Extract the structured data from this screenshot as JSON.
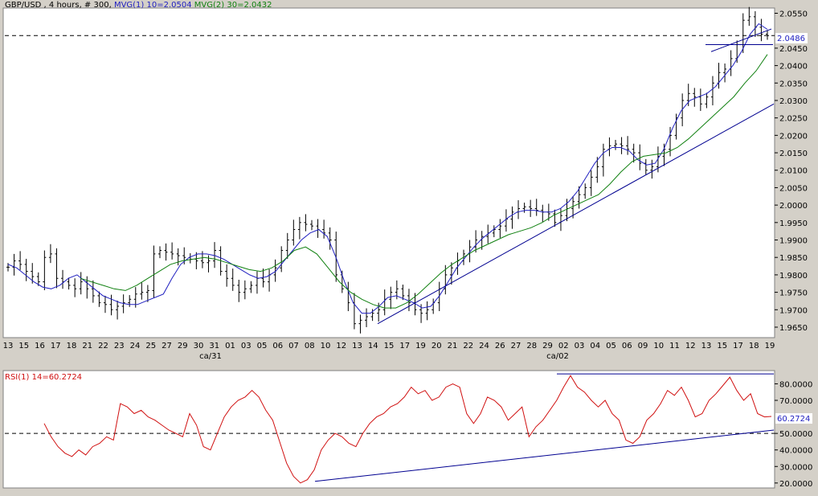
{
  "colors": {
    "background_panel": "#d4d0c8",
    "plot_bg": "#ffffff",
    "bars": "#000000",
    "mvg1": "#2020c0",
    "mvg2": "#108010",
    "trendline": "#000090",
    "rsi": "#d01010",
    "dashed": "#000000"
  },
  "price_panel": {
    "header": {
      "symbol_text": "GBP/USD , 4 hours, # 300, ",
      "mvg1_text": "MVG(1) 10=2.0504",
      "mvg2_text": "MVG(2) 30=2.0432"
    },
    "last_price_label": "2.0486",
    "y_ticks": [
      "2.0550",
      "2.0450",
      "2.0400",
      "2.0350",
      "2.0300",
      "2.0250",
      "2.0200",
      "2.0150",
      "2.0100",
      "2.0050",
      "2.0000",
      "1.9950",
      "1.9900",
      "1.9850",
      "1.9800",
      "1.9750",
      "1.9700",
      "1.9650"
    ],
    "x_ticks": [
      "13",
      "15",
      "16",
      "17",
      "18",
      "21",
      "22",
      "23",
      "24",
      "25",
      "27",
      "29",
      "30",
      "31",
      "01",
      "03",
      "05",
      "06",
      "07",
      "08",
      "10",
      "12",
      "13",
      "14",
      "15",
      "17",
      "19",
      "20",
      "21",
      "22",
      "24",
      "26",
      "27",
      "28",
      "29",
      "02",
      "03",
      "04",
      "05",
      "06",
      "09",
      "10",
      "11",
      "12",
      "13",
      "15",
      "17",
      "18",
      "19"
    ],
    "month_labels": [
      "са/31",
      "са/02"
    ]
  },
  "rsi_panel": {
    "header": "RSI(1) 14=60.2724",
    "last_label": "60.2724",
    "y_ticks": [
      "80.0000",
      "70.0000",
      "50.0000",
      "40.0000",
      "30.0000",
      "20.0000"
    ]
  },
  "chart_data": [
    {
      "type": "line",
      "title": "GBP/USD , 4 hours, # 300",
      "ylim": [
        1.962,
        2.0565
      ],
      "series": [
        {
          "name": "GBP/USD",
          "values": [
            1.9822,
            1.984,
            1.983,
            1.981,
            1.9795,
            1.978,
            1.985,
            1.986,
            1.979,
            1.978,
            1.977,
            1.976,
            1.978,
            1.976,
            1.974,
            1.972,
            1.9715,
            1.97,
            1.971,
            1.972,
            1.973,
            1.9745,
            1.975,
            1.9755,
            1.986,
            1.987,
            1.9865,
            1.986,
            1.9855,
            1.985,
            1.9845,
            1.984,
            1.9835,
            1.984,
            1.987,
            1.981,
            1.979,
            1.977,
            1.975,
            1.976,
            1.977,
            1.979,
            1.978,
            1.98,
            1.982,
            1.987,
            1.99,
            1.993,
            1.995,
            1.9945,
            1.994,
            1.993,
            1.992,
            1.99,
            1.98,
            1.976,
            1.972,
            1.966,
            1.967,
            1.968,
            1.969,
            1.97,
            1.973,
            1.975,
            1.976,
            1.974,
            1.972,
            1.97,
            1.969,
            1.97,
            1.972,
            1.976,
            1.98,
            1.982,
            1.984,
            1.986,
            1.988,
            1.99,
            1.991,
            1.992,
            1.993,
            1.994,
            1.996,
            1.998,
            1.999,
            1.9995,
            1.999,
            1.9985,
            1.998,
            1.9975,
            1.995,
            1.997,
            1.999,
            2.001,
            2.003,
            2.005,
            2.008,
            2.011,
            2.016,
            2.017,
            2.0175,
            2.017,
            2.016,
            2.015,
            2.012,
            2.01,
            2.011,
            2.014,
            2.016,
            2.02,
            2.025,
            2.03,
            2.032,
            2.031,
            2.029,
            2.031,
            2.035,
            2.038,
            2.039,
            2.042,
            2.046,
            2.053,
            2.054,
            2.051,
            2.049,
            2.0486
          ]
        },
        {
          "name": "MVG(1) 10",
          "values": [
            1.983,
            1.982,
            1.98,
            1.978,
            1.9765,
            1.976,
            1.977,
            1.979,
            1.98,
            1.978,
            1.976,
            1.974,
            1.973,
            1.972,
            1.9715,
            1.9715,
            1.9725,
            1.9735,
            1.9745,
            1.979,
            1.983,
            1.985,
            1.986,
            1.986,
            1.9855,
            1.9845,
            1.983,
            1.9815,
            1.98,
            1.979,
            1.9795,
            1.981,
            1.984,
            1.987,
            1.99,
            1.992,
            1.993,
            1.991,
            1.985,
            1.978,
            1.972,
            1.969,
            1.969,
            1.971,
            1.9735,
            1.974,
            1.973,
            1.972,
            1.9705,
            1.971,
            1.974,
            1.978,
            1.982,
            1.985,
            1.988,
            1.9905,
            1.9925,
            1.9945,
            1.9965,
            1.998,
            1.9985,
            1.9985,
            1.998,
            1.998,
            1.999,
            2.001,
            2.004,
            2.008,
            2.012,
            2.015,
            2.0165,
            2.0165,
            2.0155,
            2.013,
            2.0115,
            2.012,
            2.016,
            2.022,
            2.027,
            2.03,
            2.031,
            2.032,
            2.034,
            2.037,
            2.04,
            2.044,
            2.049,
            2.052,
            2.0504
          ]
        },
        {
          "name": "MVG(2) 30",
          "values": [
            1.979,
            1.978,
            1.977,
            1.976,
            1.9755,
            1.977,
            1.979,
            1.981,
            1.983,
            1.984,
            1.9845,
            1.985,
            1.9845,
            1.9835,
            1.9825,
            1.9815,
            1.981,
            1.982,
            1.984,
            1.987,
            1.988,
            1.986,
            1.982,
            1.978,
            1.975,
            1.973,
            1.9715,
            1.9705,
            1.9705,
            1.972,
            1.9745,
            1.9775,
            1.9805,
            1.983,
            1.985,
            1.987,
            1.9885,
            1.99,
            1.9915,
            1.9925,
            1.9935,
            1.995,
            1.997,
            1.9985,
            2.0,
            2.0015,
            2.003,
            2.006,
            2.0095,
            2.0125,
            2.014,
            2.0145,
            2.015,
            2.0165,
            2.019,
            2.022,
            2.025,
            2.028,
            2.031,
            2.035,
            2.0385,
            2.0432
          ]
        },
        {
          "name": "Trendline",
          "values": [
            1.966,
            2.029
          ]
        },
        {
          "name": "Support",
          "values": [
            2.046,
            2.046
          ]
        }
      ]
    },
    {
      "type": "line",
      "title": "RSI(1) 14=60.2724",
      "ylim": [
        17,
        88
      ],
      "series": [
        {
          "name": "RSI(1) 14",
          "values": [
            56,
            48,
            42,
            38,
            36,
            40,
            37,
            42,
            44,
            48,
            46,
            68,
            66,
            62,
            64,
            60,
            58,
            55,
            52,
            50,
            48,
            62,
            55,
            42,
            40,
            50,
            60,
            66,
            70,
            72,
            76,
            72,
            64,
            58,
            45,
            32,
            24,
            20,
            22,
            28,
            40,
            46,
            50,
            48,
            44,
            42,
            50,
            56,
            60,
            62,
            66,
            68,
            72,
            78,
            74,
            76,
            70,
            72,
            78,
            80,
            78,
            62,
            56,
            62,
            72,
            70,
            66,
            58,
            62,
            66,
            48,
            54,
            58,
            64,
            70,
            78,
            85,
            78,
            75,
            70,
            66,
            70,
            62,
            58,
            46,
            44,
            48,
            58,
            62,
            68,
            76,
            73,
            78,
            70,
            60,
            62,
            70,
            74,
            79,
            84,
            76,
            70,
            74,
            62,
            60,
            60.27
          ]
        },
        {
          "name": "Resistance",
          "values": [
            86,
            86
          ]
        },
        {
          "name": "Support",
          "values": [
            21,
            52
          ]
        }
      ]
    }
  ]
}
